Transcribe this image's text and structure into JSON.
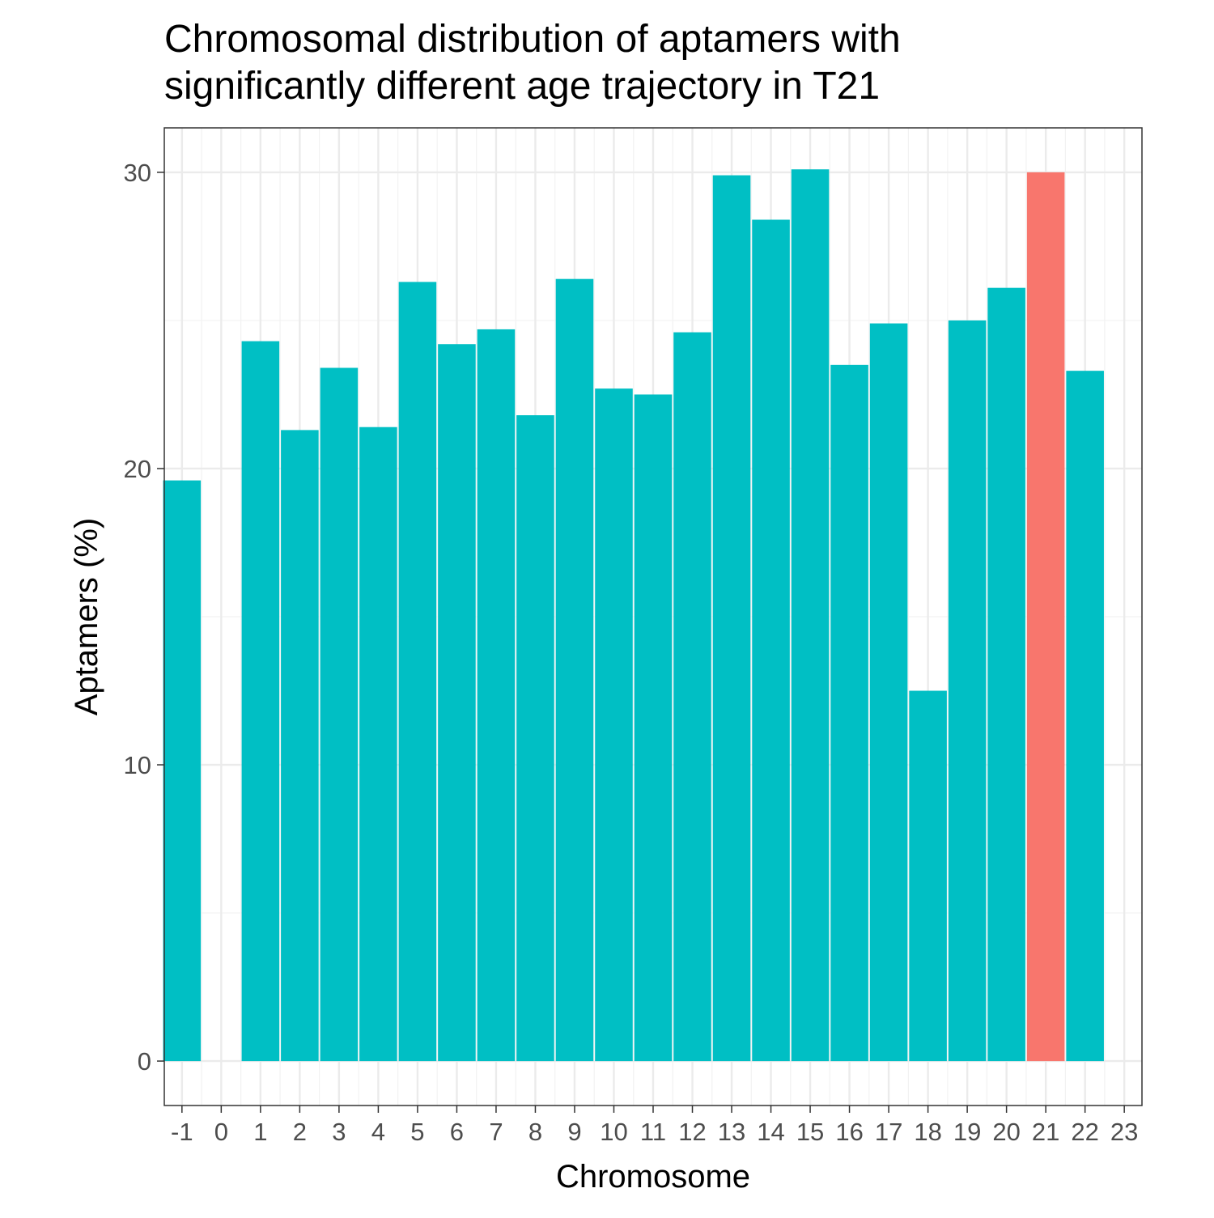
{
  "chart_data": {
    "type": "bar",
    "title_line1": "Chromosomal distribution of aptamers with",
    "title_line2": "significantly different age trajectory in T21",
    "xlabel": "Chromosome",
    "ylabel": "Aptamers (%)",
    "x_ticks": [
      "-1",
      "0",
      "1",
      "2",
      "3",
      "4",
      "5",
      "6",
      "7",
      "8",
      "9",
      "10",
      "11",
      "12",
      "13",
      "14",
      "15",
      "16",
      "17",
      "18",
      "19",
      "20",
      "21",
      "22",
      "23"
    ],
    "y_ticks": [
      "0",
      "10",
      "20",
      "30"
    ],
    "xlim": [
      -1.45,
      23.45
    ],
    "ylim": [
      -1.5,
      31.5
    ],
    "grid": true,
    "bar_width": 0.96,
    "colors": {
      "default": "#00BFC4",
      "highlight": "#F8766D"
    },
    "highlight_category": "21",
    "categories": [
      "-1",
      "1",
      "2",
      "3",
      "4",
      "5",
      "6",
      "7",
      "8",
      "9",
      "10",
      "11",
      "12",
      "13",
      "14",
      "15",
      "16",
      "17",
      "18",
      "19",
      "20",
      "21",
      "22"
    ],
    "values": [
      19.6,
      24.3,
      21.3,
      23.4,
      21.4,
      26.3,
      24.2,
      24.7,
      21.8,
      26.4,
      22.7,
      22.5,
      24.6,
      29.9,
      28.4,
      30.1,
      23.5,
      24.9,
      12.5,
      25.0,
      26.1,
      30.0,
      23.3
    ]
  }
}
